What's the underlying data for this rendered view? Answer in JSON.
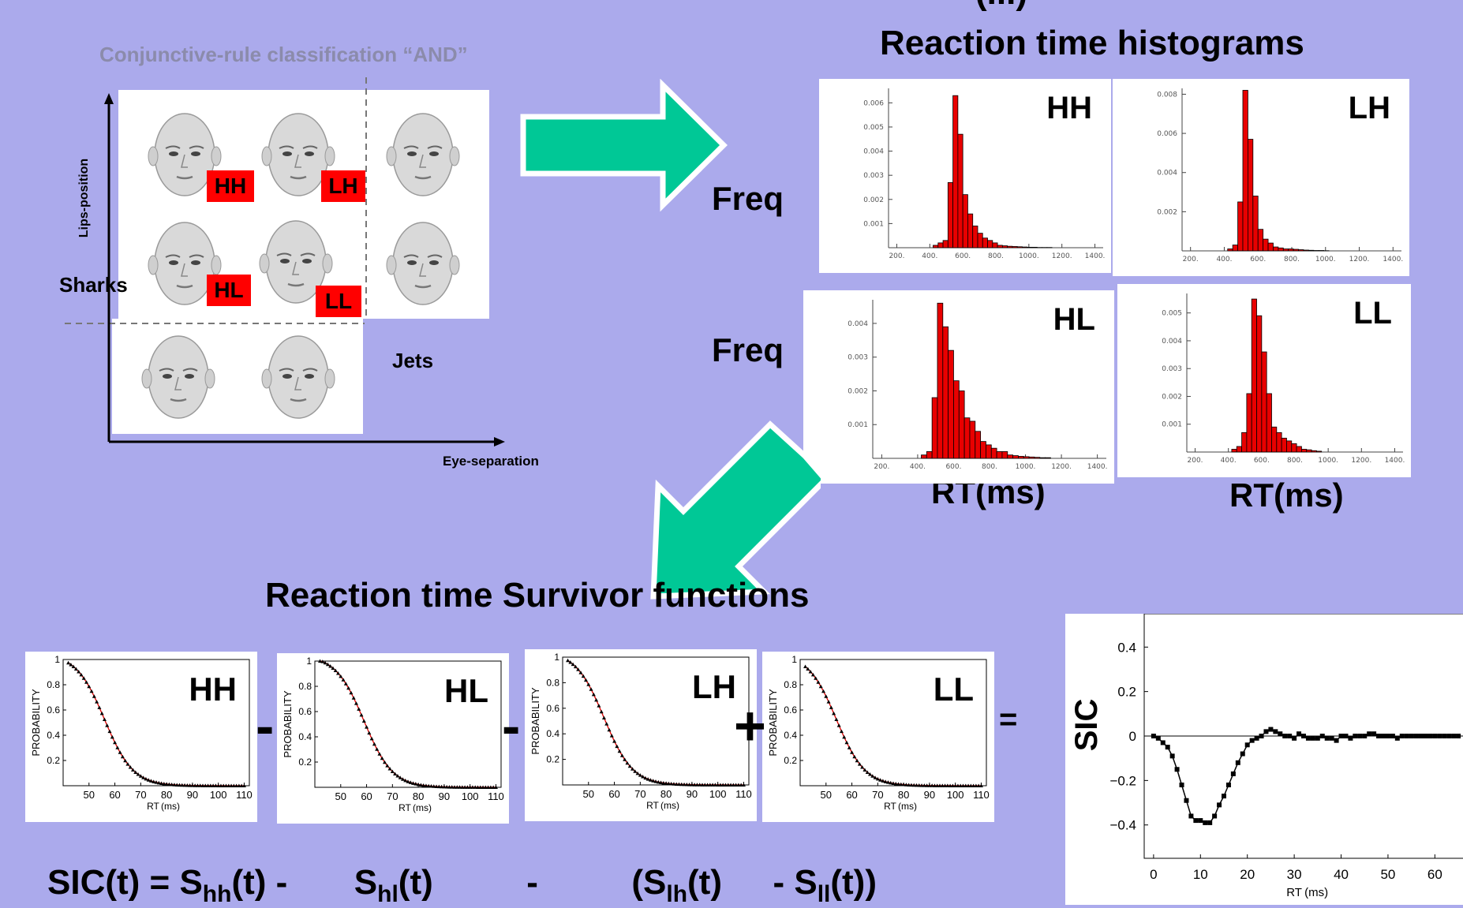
{
  "top_partial_title": "(...)",
  "left_panel": {
    "title": "Conjunctive-rule classification “AND”",
    "y_axis_label": "Lips-position",
    "x_axis_label": "Eye-separation",
    "sharks_label": "Sharks",
    "jets_label": "Jets",
    "face_tags": [
      "HH",
      "LH",
      "HL",
      "LL"
    ],
    "tag_color": "#ff0000"
  },
  "histograms": {
    "title": "Reaction time histograms",
    "freq_label": "Freq",
    "rt_label": "RT(ms)",
    "bar_color": "#e80000",
    "panels": [
      {
        "name": "HH",
        "yticks": [
          "0.006",
          "0.005",
          "0.004",
          "0.003",
          "0.002",
          "0.001"
        ],
        "ymax": 0.0066,
        "xticks": [
          "200.",
          "400.",
          "600.",
          "800.",
          "1000.",
          "1200.",
          "1400."
        ],
        "bins": [
          420,
          450,
          480,
          510,
          540,
          570,
          600,
          630,
          660,
          690,
          720,
          750,
          780,
          810,
          840,
          870,
          900,
          930,
          960,
          990,
          1020,
          1050,
          1080,
          1110
        ],
        "values": [
          0.0001,
          0.0002,
          0.0003,
          0.0027,
          0.0063,
          0.0047,
          0.0022,
          0.0014,
          0.0009,
          0.0006,
          0.0004,
          0.0003,
          0.0002,
          0.0001,
          8e-05,
          6e-05,
          5e-05,
          4e-05,
          3e-05,
          2e-05,
          2e-05,
          1e-05,
          1e-05,
          1e-05
        ]
      },
      {
        "name": "LH",
        "yticks": [
          "0.008",
          "0.006",
          "0.004",
          "0.002"
        ],
        "ymax": 0.0083,
        "xticks": [
          "200.",
          "400.",
          "600.",
          "800.",
          "1000.",
          "1200.",
          "1400."
        ],
        "bins": [
          420,
          450,
          480,
          510,
          540,
          570,
          600,
          630,
          660,
          690,
          720,
          750,
          780,
          810,
          840,
          870,
          900,
          930,
          960,
          990
        ],
        "values": [
          0.0001,
          0.0003,
          0.0025,
          0.0082,
          0.0057,
          0.0028,
          0.0011,
          0.0006,
          0.0004,
          0.0002,
          0.00015,
          0.0001,
          0.0001,
          8e-05,
          6e-05,
          4e-05,
          3e-05,
          2e-05,
          2e-05,
          1e-05
        ]
      },
      {
        "name": "HL",
        "yticks": [
          "0.004",
          "0.003",
          "0.002",
          "0.001"
        ],
        "ymax": 0.0047,
        "xticks": [
          "200.",
          "400.",
          "600.",
          "800.",
          "1000.",
          "1200.",
          "1400."
        ],
        "bins": [
          420,
          450,
          480,
          510,
          540,
          570,
          600,
          630,
          660,
          690,
          720,
          750,
          780,
          810,
          840,
          870,
          900,
          930,
          960,
          990,
          1020,
          1050,
          1080,
          1110
        ],
        "values": [
          0.0001,
          0.0002,
          0.0018,
          0.0046,
          0.0039,
          0.0032,
          0.0023,
          0.002,
          0.0012,
          0.0011,
          0.0008,
          0.0005,
          0.0004,
          0.0003,
          0.0002,
          0.0002,
          0.0001,
          8e-05,
          6e-05,
          5e-05,
          4e-05,
          3e-05,
          2e-05,
          2e-05
        ]
      },
      {
        "name": "LL",
        "yticks": [
          "0.005",
          "0.004",
          "0.003",
          "0.002",
          "0.001"
        ],
        "ymax": 0.0057,
        "xticks": [
          "200.",
          "400.",
          "600.",
          "800.",
          "1000.",
          "1200.",
          "1400."
        ],
        "bins": [
          420,
          450,
          480,
          510,
          540,
          570,
          600,
          630,
          660,
          690,
          720,
          750,
          780,
          810,
          840,
          870,
          900,
          930
        ],
        "values": [
          0.0001,
          0.0002,
          0.0007,
          0.0021,
          0.0055,
          0.0049,
          0.0036,
          0.0021,
          0.0009,
          0.0007,
          0.0005,
          0.0004,
          0.0003,
          0.0002,
          0.0001,
          8e-05,
          5e-05,
          3e-05
        ]
      }
    ]
  },
  "survivor": {
    "title": "Reaction time Survivor functions",
    "ylabel": "PROBABILITY",
    "xlabel": "RT",
    "xunit": "ms",
    "xticks": [
      50,
      60,
      70,
      80,
      90,
      100,
      110
    ],
    "yticks": [
      "1",
      "0.8",
      "0.6",
      "0.4",
      "0.2"
    ],
    "operators": [
      "-",
      "-",
      "+",
      "="
    ],
    "panels": [
      {
        "name": "HH",
        "shift": 0
      },
      {
        "name": "HL",
        "shift": 3
      },
      {
        "name": "LH",
        "shift": 0
      },
      {
        "name": "LL",
        "shift": -2
      }
    ]
  },
  "formula": {
    "part1": "SIC(t) = S",
    "sub_hh": "hh",
    "part2": "(t) -",
    "part3": "S",
    "sub_hl": "hl",
    "part4": "(t)",
    "part5": "-",
    "part6": "(S",
    "sub_lh": "lh",
    "part7": "(t)",
    "part8": "- S",
    "sub_ll": "ll",
    "part9": "(t))"
  },
  "chart_data": {
    "type": "line",
    "ylabel": "SIC",
    "xlabel": "RT",
    "xunit": "ms",
    "xticks": [
      0,
      10,
      20,
      30,
      40,
      50,
      60
    ],
    "yticks": [
      0.4,
      0.2,
      0,
      -0.2,
      -0.4
    ],
    "ylim": [
      -0.55,
      0.55
    ],
    "xlim": [
      -2,
      66
    ],
    "x": [
      0,
      1,
      2,
      3,
      4,
      5,
      6,
      7,
      8,
      9,
      10,
      11,
      12,
      13,
      14,
      15,
      16,
      17,
      18,
      19,
      20,
      21,
      22,
      23,
      24,
      25,
      26,
      27,
      28,
      29,
      30,
      31,
      32,
      33,
      34,
      35,
      36,
      37,
      38,
      39,
      40,
      41,
      42,
      43,
      44,
      45,
      46,
      47,
      48,
      49,
      50,
      51,
      52,
      53,
      54,
      55,
      56,
      57,
      58,
      59,
      60,
      61,
      62,
      63,
      64,
      65
    ],
    "y": [
      0.0,
      -0.01,
      -0.03,
      -0.05,
      -0.09,
      -0.15,
      -0.22,
      -0.29,
      -0.36,
      -0.38,
      -0.38,
      -0.39,
      -0.39,
      -0.36,
      -0.31,
      -0.27,
      -0.22,
      -0.17,
      -0.12,
      -0.08,
      -0.04,
      -0.02,
      -0.01,
      0.0,
      0.02,
      0.03,
      0.02,
      0.01,
      0.0,
      0.0,
      -0.01,
      0.01,
      0.0,
      -0.01,
      -0.01,
      -0.01,
      0.0,
      -0.01,
      -0.01,
      -0.02,
      0.0,
      0.0,
      -0.01,
      0.0,
      0.0,
      0.0,
      0.01,
      0.01,
      0.0,
      0.0,
      0.0,
      0.0,
      -0.01,
      0.0,
      0.0,
      0.0,
      0.0,
      0.0,
      0.0,
      0.0,
      0.0,
      0.0,
      0.0,
      0.0,
      0.0,
      0.0
    ],
    "grid": false
  }
}
